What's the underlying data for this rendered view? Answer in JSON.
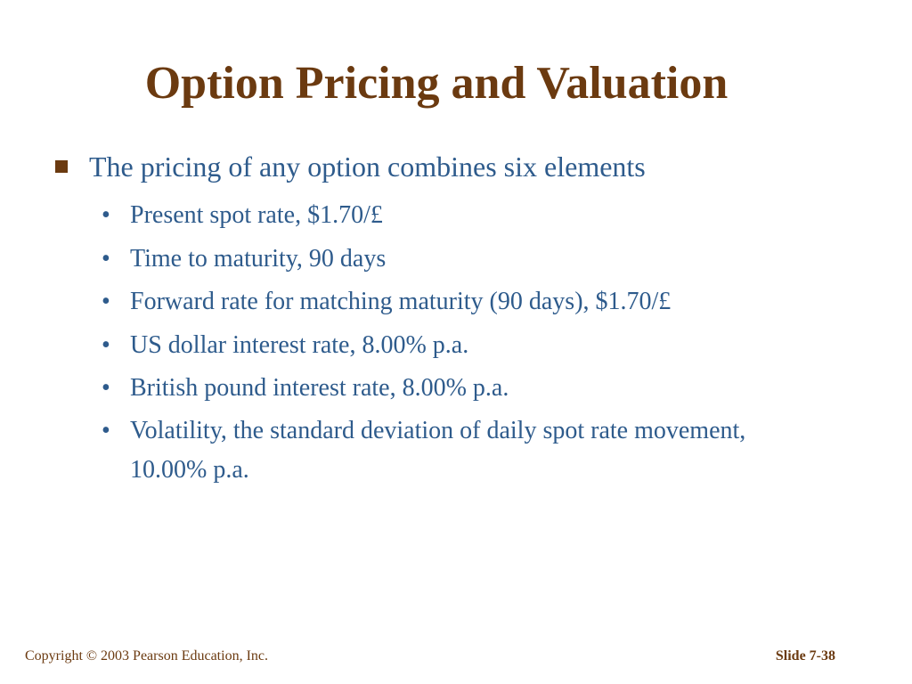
{
  "slide": {
    "title": "Option Pricing and Valuation",
    "main_point": "The pricing of any option combines six elements",
    "elements": [
      "Present spot rate, $1.70/£",
      "Time to maturity, 90 days",
      "Forward rate for matching maturity (90 days), $1.70/£",
      "US dollar interest rate, 8.00% p.a.",
      "British pound interest rate, 8.00% p.a.",
      "Volatility, the standard deviation of daily spot rate movement, 10.00% p.a."
    ],
    "bullet_glyph": "•"
  },
  "footer": {
    "copyright": "Copyright © 2003 Pearson Education, Inc.",
    "slide_number": "Slide 7-38"
  },
  "colors": {
    "title": "#6b3a10",
    "body_text": "#2e5b8c",
    "footer": "#6b3a10",
    "background": "#ffffff"
  },
  "icons": {
    "main_bullet": "square-bullet-icon",
    "sub_bullet": "dot-bullet-icon"
  }
}
